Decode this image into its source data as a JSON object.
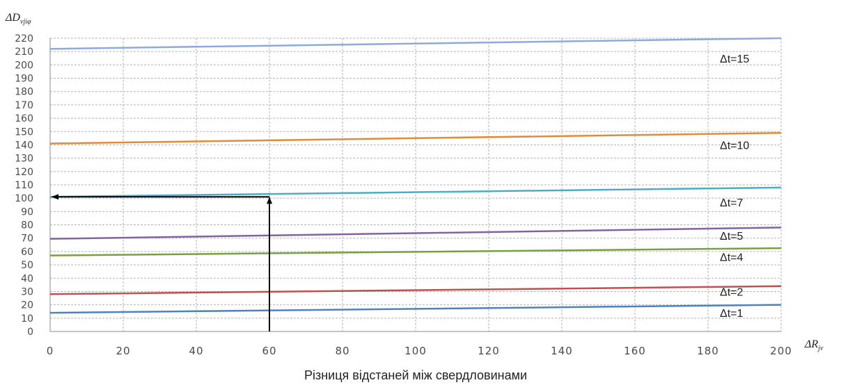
{
  "chart_data": {
    "type": "line",
    "ylabel": "ΔD",
    "ylabel_sub": "vjiφ",
    "xlabel": "ΔR",
    "xlabel_sub": "jv",
    "x_caption": "Різниця відстаней між свердловинами",
    "xlim": [
      0,
      200
    ],
    "ylim": [
      0,
      220
    ],
    "x_ticks": [
      0,
      20,
      40,
      60,
      80,
      100,
      120,
      140,
      160,
      180,
      200
    ],
    "y_ticks": [
      0,
      10,
      20,
      30,
      40,
      50,
      60,
      70,
      80,
      90,
      100,
      110,
      120,
      130,
      140,
      150,
      160,
      170,
      180,
      190,
      200,
      210,
      220
    ],
    "grid": true,
    "x": [
      0,
      200
    ],
    "series": [
      {
        "name": "Δt=15",
        "values": [
          212,
          220
        ],
        "color": "#8ea9db"
      },
      {
        "name": "Δt=10",
        "values": [
          141,
          149
        ],
        "color": "#e3893a"
      },
      {
        "name": "Δt=7",
        "values": [
          101,
          108
        ],
        "color": "#4bacc6"
      },
      {
        "name": "Δt=5",
        "values": [
          69.5,
          78
        ],
        "color": "#8064a2"
      },
      {
        "name": "Δt=4",
        "values": [
          57,
          62.5
        ],
        "color": "#77a041"
      },
      {
        "name": "Δt=2",
        "values": [
          28,
          34
        ],
        "color": "#c0504d"
      },
      {
        "name": "Δt=1",
        "values": [
          14,
          20
        ],
        "color": "#4f81bd"
      }
    ],
    "series_label_values": [
      205,
      140,
      97,
      72,
      56,
      30,
      14
    ],
    "annotation": {
      "x": 60,
      "y": 101,
      "color": "#000000"
    }
  }
}
